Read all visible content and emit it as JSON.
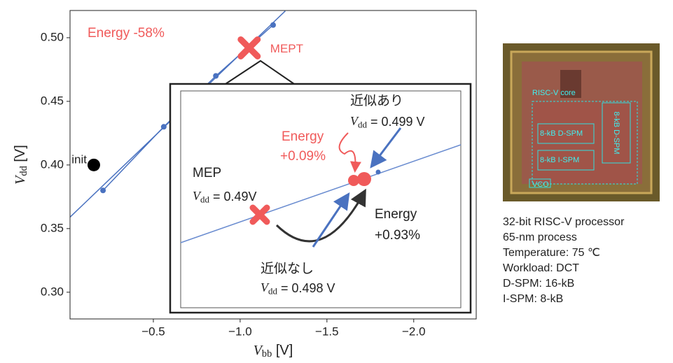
{
  "chart_data": {
    "type": "line",
    "xlabel": {
      "var": "V",
      "sub": "bb",
      "rest": " [V]"
    },
    "ylabel": {
      "var": "V",
      "sub": "dd",
      "rest": " [V]"
    },
    "xlim": [
      -0.02,
      -2.36
    ],
    "ylim": [
      0.279,
      0.5214
    ],
    "xticks": [
      {
        "value": -0.5,
        "label": "−0.5"
      },
      {
        "value": -1.0,
        "label": "−1.0"
      },
      {
        "value": -1.5,
        "label": "−1.5"
      },
      {
        "value": -2.0,
        "label": "−2.0"
      }
    ],
    "yticks": [
      {
        "value": 0.3,
        "label": "0.30"
      },
      {
        "value": 0.35,
        "label": "0.35"
      },
      {
        "value": 0.4,
        "label": "0.40"
      },
      {
        "value": 0.45,
        "label": "0.45"
      },
      {
        "value": 0.5,
        "label": "0.50"
      }
    ],
    "series": [
      {
        "color": "#4a72c0",
        "markers": false,
        "x": [
          -0.02,
          -1.26
        ],
        "values": [
          0.359,
          0.521
        ]
      },
      {
        "color": "#4a72c0",
        "markers": true,
        "x": [
          -0.21,
          -0.56,
          -0.86,
          -1.19
        ],
        "values": [
          0.38,
          0.43,
          0.47,
          0.51
        ]
      }
    ],
    "points": [
      {
        "x": -0.157,
        "y": 0.4,
        "color": "#000000",
        "label": "init"
      },
      {
        "x": -1.052,
        "y": 0.492,
        "color": "#f05a5a",
        "label": "MEPT"
      }
    ],
    "annotations": {
      "main_energy": "Energy -58%",
      "approx_yes": "近似あり",
      "approx_yes_v": {
        "var": "V",
        "sub": "dd",
        "rest": " = 0.499 V"
      },
      "energy_small": "Energy",
      "energy_small_pct": "+0.09%",
      "mep": "MEP",
      "mep_v": {
        "var": "V",
        "sub": "dd",
        "rest": " = 0.49V"
      },
      "energy_big": "Energy",
      "energy_big_pct": "+0.93%",
      "approx_no": "近似なし",
      "approx_no_v": {
        "var": "V",
        "sub": "dd",
        "rest": " = 0.498 V"
      }
    }
  },
  "chip": {
    "blocks": [
      "RISC-V core",
      "8-kB D-SPM",
      "8-kB I-SPM",
      "8-kB D-SPM",
      "VCO"
    ],
    "caption": [
      "32-bit RISC-V processor",
      "65-nm process",
      "Temperature: 75 ℃",
      "Workload: DCT",
      "D-SPM: 16-kB",
      "I-SPM:  8-kB"
    ]
  }
}
